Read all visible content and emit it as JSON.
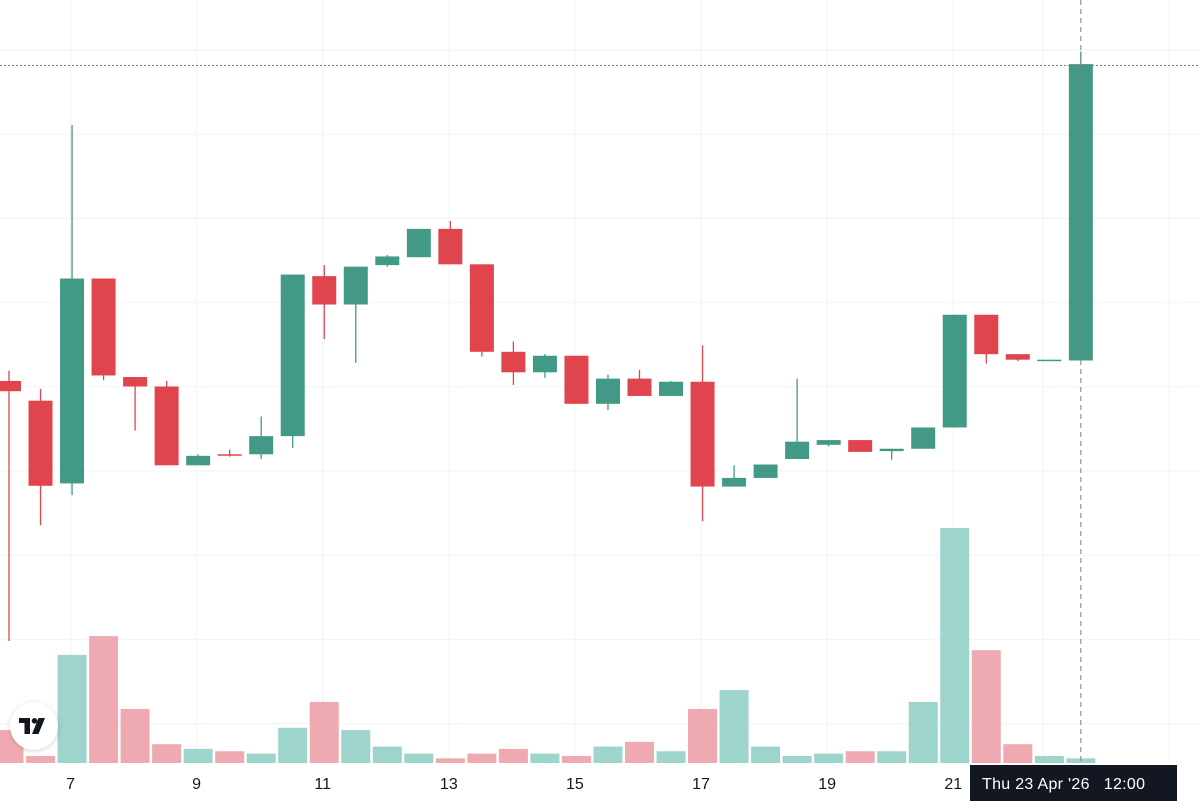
{
  "crosshair": {
    "time_label": "Thu 23 Apr '26",
    "time_value": "12:00"
  },
  "logo": {
    "icon": "tradingview-logo-icon"
  },
  "colors": {
    "up": "#26a69a",
    "up_body": "#429a86",
    "down": "#e0444d",
    "up_volume": "#9dd4cb",
    "down_volume": "#efaab1",
    "grid": "#f0f3fa",
    "text": "#131722",
    "label_bg": "#131722"
  },
  "chart_data": {
    "type": "candlestick",
    "title": "",
    "xlabel": "",
    "ylabel": "",
    "x_ticks": [
      "7",
      "9",
      "11",
      "13",
      "15",
      "17",
      "19",
      "21"
    ],
    "grid": true,
    "price_range": [
      47,
      123
    ],
    "volume_range": [
      0,
      100
    ],
    "candles": [
      {
        "day": 6.5,
        "open": 80.5,
        "high": 81.8,
        "low": 47.5,
        "close": 79.2,
        "volume": 14
      },
      {
        "day": 7.0,
        "open": 78.0,
        "high": 79.5,
        "low": 62.2,
        "close": 67.2,
        "volume": 3
      },
      {
        "day": 7.5,
        "open": 67.5,
        "high": 113.0,
        "low": 66.0,
        "close": 93.5,
        "volume": 46
      },
      {
        "day": 8.0,
        "open": 93.5,
        "high": 93.5,
        "low": 80.6,
        "close": 81.2,
        "volume": 54
      },
      {
        "day": 8.5,
        "open": 81.0,
        "high": 81.0,
        "low": 74.2,
        "close": 79.8,
        "volume": 23
      },
      {
        "day": 9.0,
        "open": 79.8,
        "high": 80.5,
        "low": 69.8,
        "close": 69.8,
        "volume": 8
      },
      {
        "day": 9.5,
        "open": 69.8,
        "high": 71.2,
        "low": 69.8,
        "close": 71.0,
        "volume": 6
      },
      {
        "day": 10.0,
        "open": 71.2,
        "high": 71.8,
        "low": 70.9,
        "close": 71.1,
        "volume": 5
      },
      {
        "day": 10.5,
        "open": 71.2,
        "high": 76.0,
        "low": 70.6,
        "close": 73.5,
        "volume": 4
      },
      {
        "day": 11.0,
        "open": 73.5,
        "high": 94.0,
        "low": 72.0,
        "close": 94.0,
        "volume": 15
      },
      {
        "day": 11.5,
        "open": 93.8,
        "high": 95.2,
        "low": 85.8,
        "close": 90.2,
        "volume": 26
      },
      {
        "day": 12.0,
        "open": 90.2,
        "high": 95.0,
        "low": 82.8,
        "close": 95.0,
        "volume": 14
      },
      {
        "day": 12.5,
        "open": 95.2,
        "high": 96.5,
        "low": 95.0,
        "close": 96.3,
        "volume": 7
      },
      {
        "day": 13.0,
        "open": 96.2,
        "high": 99.8,
        "low": 96.2,
        "close": 99.8,
        "volume": 4
      },
      {
        "day": 13.5,
        "open": 99.8,
        "high": 100.8,
        "low": 95.3,
        "close": 95.3,
        "volume": 2
      },
      {
        "day": 14.0,
        "open": 95.3,
        "high": 95.3,
        "low": 83.6,
        "close": 84.2,
        "volume": 4
      },
      {
        "day": 14.5,
        "open": 84.2,
        "high": 85.5,
        "low": 80.0,
        "close": 81.6,
        "volume": 6
      },
      {
        "day": 15.0,
        "open": 81.6,
        "high": 83.9,
        "low": 80.9,
        "close": 83.7,
        "volume": 4
      },
      {
        "day": 15.5,
        "open": 83.7,
        "high": 83.7,
        "low": 77.6,
        "close": 77.6,
        "volume": 3
      },
      {
        "day": 16.0,
        "open": 77.6,
        "high": 81.3,
        "low": 76.8,
        "close": 80.8,
        "volume": 7
      },
      {
        "day": 16.5,
        "open": 80.8,
        "high": 81.9,
        "low": 78.6,
        "close": 78.6,
        "volume": 9
      },
      {
        "day": 17.0,
        "open": 78.6,
        "high": 80.5,
        "low": 78.6,
        "close": 80.4,
        "volume": 5
      },
      {
        "day": 17.5,
        "open": 80.4,
        "high": 85.0,
        "low": 62.7,
        "close": 67.1,
        "volume": 23
      },
      {
        "day": 18.0,
        "open": 67.1,
        "high": 69.8,
        "low": 67.1,
        "close": 68.2,
        "volume": 31
      },
      {
        "day": 18.5,
        "open": 68.2,
        "high": 69.9,
        "low": 68.2,
        "close": 69.9,
        "volume": 7
      },
      {
        "day": 19.0,
        "open": 70.6,
        "high": 80.8,
        "low": 70.6,
        "close": 72.8,
        "volume": 3
      },
      {
        "day": 19.5,
        "open": 72.4,
        "high": 73.0,
        "low": 72.2,
        "close": 73.0,
        "volume": 4
      },
      {
        "day": 20.0,
        "open": 73.0,
        "high": 73.0,
        "low": 71.5,
        "close": 71.5,
        "volume": 5
      },
      {
        "day": 20.5,
        "open": 71.6,
        "high": 71.9,
        "low": 70.5,
        "close": 71.9,
        "volume": 5
      },
      {
        "day": 21.0,
        "open": 71.9,
        "high": 74.6,
        "low": 71.9,
        "close": 74.6,
        "volume": 26
      },
      {
        "day": 21.5,
        "open": 74.6,
        "high": 88.9,
        "low": 74.6,
        "close": 88.9,
        "volume": 100
      },
      {
        "day": 22.0,
        "open": 88.9,
        "high": 88.9,
        "low": 82.7,
        "close": 83.9,
        "volume": 48
      },
      {
        "day": 22.5,
        "open": 83.9,
        "high": 83.9,
        "low": 83.0,
        "close": 83.2,
        "volume": 8
      },
      {
        "day": 23.0,
        "open": 83.1,
        "high": 83.2,
        "low": 83.0,
        "close": 83.2,
        "volume": 3
      },
      {
        "day": 23.5,
        "open": 83.1,
        "high": 122.3,
        "low": 83.1,
        "close": 120.7,
        "volume": 2
      }
    ]
  }
}
